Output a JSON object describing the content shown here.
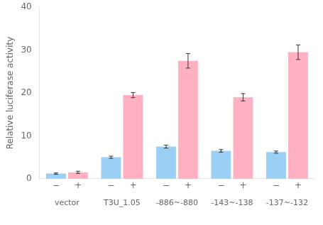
{
  "chart_data": {
    "type": "bar",
    "categories": [
      "vector",
      "T3U_1.05",
      "-886~-880",
      "-143~-138",
      "-137~-132"
    ],
    "series": [
      {
        "name": "−",
        "values": [
          1.2,
          5.0,
          7.5,
          6.5,
          6.2
        ],
        "errors": [
          0.15,
          0.25,
          0.35,
          0.3,
          0.25
        ]
      },
      {
        "name": "+",
        "values": [
          1.5,
          19.5,
          27.5,
          19.0,
          29.5
        ],
        "errors": [
          0.25,
          0.6,
          1.7,
          0.85,
          1.7
        ]
      }
    ],
    "ylabel": "Relative luciferase activity",
    "ylim": [
      0,
      40
    ],
    "yticks": [
      0,
      10,
      20,
      30,
      40
    ],
    "grid": false
  }
}
